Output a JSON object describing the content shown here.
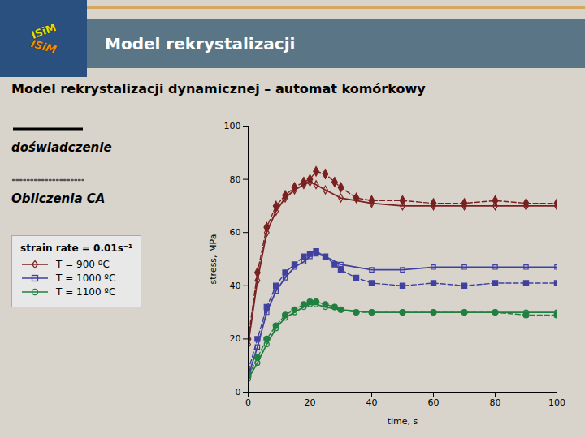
{
  "chart_data": {
    "type": "line",
    "title": "Model rekrystalizacji",
    "subtitle": "Model rekrystalizacji dynamicznej – automat komórkowy",
    "logo": [
      "ISiM",
      "ISiM"
    ],
    "style_legend": [
      {
        "text": "doświadczenie",
        "line_style": "solid"
      },
      {
        "text": "Obliczenia CA",
        "line_style": "dotted"
      }
    ],
    "legend_title": "strain rate = 0.01s⁻¹",
    "x_label": "time, s",
    "y_label": "stress, MPa",
    "xlim": [
      0,
      100
    ],
    "ylim": [
      0,
      100
    ],
    "xticks": [
      0,
      20,
      40,
      60,
      80,
      100
    ],
    "yticks": [
      0,
      20,
      40,
      60,
      80,
      100
    ],
    "grid": false,
    "series": [
      {
        "name": "T = 900 ºC",
        "color": "#7a2020",
        "line_style": "dashed",
        "marker": "filled_diamond",
        "x": [
          0,
          3,
          6,
          9,
          12,
          15,
          18,
          20,
          22,
          25,
          28,
          30,
          35,
          40,
          50,
          60,
          70,
          80,
          90,
          100
        ],
        "values": [
          20,
          45,
          62,
          70,
          74,
          77,
          79,
          80,
          83,
          82,
          79,
          77,
          73,
          72,
          72,
          71,
          71,
          72,
          71,
          71
        ]
      },
      {
        "name": "T = 900 ºC",
        "color": "#7a2020",
        "line_style": "solid",
        "marker": "open_diamond",
        "x": [
          0,
          3,
          6,
          9,
          12,
          15,
          18,
          20,
          22,
          25,
          30,
          40,
          50,
          60,
          70,
          80,
          90,
          100
        ],
        "values": [
          18,
          42,
          60,
          68,
          73,
          76,
          78,
          79,
          78,
          76,
          73,
          71,
          70,
          70,
          70,
          70,
          70,
          70
        ]
      },
      {
        "name": "T = 1000 ºC",
        "color": "#4040a0",
        "line_style": "dashed",
        "marker": "filled_square",
        "x": [
          0,
          3,
          6,
          9,
          12,
          15,
          18,
          20,
          22,
          25,
          28,
          30,
          35,
          40,
          50,
          60,
          70,
          80,
          90,
          100
        ],
        "values": [
          8,
          20,
          32,
          40,
          45,
          48,
          51,
          52,
          53,
          51,
          48,
          46,
          43,
          41,
          40,
          41,
          40,
          41,
          41,
          41
        ]
      },
      {
        "name": "T = 1000 ºC",
        "color": "#4040a0",
        "line_style": "solid",
        "marker": "open_square",
        "x": [
          0,
          3,
          6,
          9,
          12,
          15,
          18,
          20,
          22,
          25,
          30,
          40,
          50,
          60,
          70,
          80,
          90,
          100
        ],
        "values": [
          6,
          17,
          30,
          38,
          43,
          47,
          49,
          51,
          52,
          51,
          48,
          46,
          46,
          47,
          47,
          47,
          47,
          47
        ]
      },
      {
        "name": "T = 1100 ºC",
        "color": "#208040",
        "line_style": "dashed",
        "marker": "filled_circle",
        "x": [
          0,
          3,
          6,
          9,
          12,
          15,
          18,
          20,
          22,
          25,
          28,
          30,
          35,
          40,
          50,
          60,
          70,
          80,
          90,
          100
        ],
        "values": [
          6,
          13,
          20,
          25,
          29,
          31,
          33,
          34,
          34,
          33,
          32,
          31,
          30,
          30,
          30,
          30,
          30,
          30,
          29,
          29
        ]
      },
      {
        "name": "T = 1100 ºC",
        "color": "#208040",
        "line_style": "solid",
        "marker": "open_circle",
        "x": [
          0,
          3,
          6,
          9,
          12,
          15,
          18,
          20,
          22,
          25,
          30,
          40,
          50,
          60,
          70,
          80,
          90,
          100
        ],
        "values": [
          5,
          11,
          18,
          24,
          28,
          30,
          32,
          33,
          33,
          32,
          31,
          30,
          30,
          30,
          30,
          30,
          30,
          30
        ]
      }
    ]
  }
}
